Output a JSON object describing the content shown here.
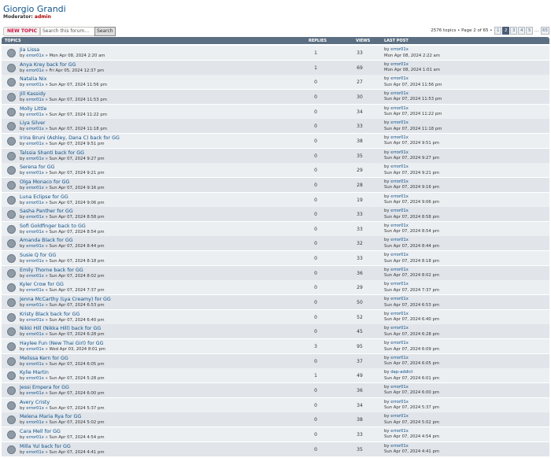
{
  "header": {
    "title": "Giorgio Grandi",
    "moderator_label": "Moderator:",
    "moderator": "admin"
  },
  "toolbar": {
    "new_topic": "NEW TOPIC",
    "search_placeholder": "Search this forum…",
    "search_button": "Search",
    "topic_count": "2576 topics",
    "page_info": "Page 2 of 65",
    "separator": "•",
    "pages": [
      "1",
      "2",
      "3",
      "4",
      "5"
    ],
    "ellipsis": "...",
    "last_page": "65",
    "current_page": "2"
  },
  "table": {
    "headers": [
      "TOPICS",
      "REPLIES",
      "VIEWS",
      "LAST POST"
    ],
    "by_label": "by",
    "arrow": "»",
    "rows": [
      {
        "title": "Jia Lissa",
        "author": "error01x",
        "posted": "Mon Apr 08, 2024 2:20 am",
        "replies": 1,
        "views": 33,
        "last_author": "error01x",
        "last_date": "Mon Apr 08, 2024 2:22 am"
      },
      {
        "title": "Anya Krey back for GG",
        "author": "error01x",
        "posted": "Fri Apr 05, 2024 12:37 pm",
        "replies": 1,
        "views": 69,
        "last_author": "error01x",
        "last_date": "Mon Apr 08, 2024 1:01 am"
      },
      {
        "title": "Natalia Nix",
        "author": "error01x",
        "posted": "Sun Apr 07, 2024 11:56 pm",
        "replies": 0,
        "views": 27,
        "last_author": "error01x",
        "last_date": "Sun Apr 07, 2024 11:56 pm"
      },
      {
        "title": "Jill Kassidy",
        "author": "error01x",
        "posted": "Sun Apr 07, 2024 11:53 pm",
        "replies": 0,
        "views": 30,
        "last_author": "error01x",
        "last_date": "Sun Apr 07, 2024 11:53 pm"
      },
      {
        "title": "Molly Little",
        "author": "error01x",
        "posted": "Sun Apr 07, 2024 11:22 pm",
        "replies": 0,
        "views": 34,
        "last_author": "error01x",
        "last_date": "Sun Apr 07, 2024 11:22 pm"
      },
      {
        "title": "Liya Silver",
        "author": "error01x",
        "posted": "Sun Apr 07, 2024 11:18 pm",
        "replies": 0,
        "views": 33,
        "last_author": "error01x",
        "last_date": "Sun Apr 07, 2024 11:18 pm"
      },
      {
        "title": "Irina Bruni (Ashley, Dana C) back for GG",
        "author": "error01x",
        "posted": "Sun Apr 07, 2024 9:51 pm",
        "replies": 0,
        "views": 38,
        "last_author": "error01x",
        "last_date": "Sun Apr 07, 2024 9:51 pm"
      },
      {
        "title": "Talssia Shanti back for GG",
        "author": "error01x",
        "posted": "Sun Apr 07, 2024 9:27 pm",
        "replies": 0,
        "views": 35,
        "last_author": "error01x",
        "last_date": "Sun Apr 07, 2024 9:27 pm"
      },
      {
        "title": "Serena for GG",
        "author": "error01x",
        "posted": "Sun Apr 07, 2024 9:21 pm",
        "replies": 0,
        "views": 29,
        "last_author": "error01x",
        "last_date": "Sun Apr 07, 2024 9:21 pm"
      },
      {
        "title": "Olga Monaco for GG",
        "author": "error01x",
        "posted": "Sun Apr 07, 2024 9:16 pm",
        "replies": 0,
        "views": 28,
        "last_author": "error01x",
        "last_date": "Sun Apr 07, 2024 9:16 pm"
      },
      {
        "title": "Luna Eclipse for GG",
        "author": "error01x",
        "posted": "Sun Apr 07, 2024 9:06 pm",
        "replies": 0,
        "views": 19,
        "last_author": "error01x",
        "last_date": "Sun Apr 07, 2024 9:06 pm"
      },
      {
        "title": "Sasha Panther for GG",
        "author": "error01x",
        "posted": "Sun Apr 07, 2024 8:58 pm",
        "replies": 0,
        "views": 33,
        "last_author": "error01x",
        "last_date": "Sun Apr 07, 2024 8:58 pm"
      },
      {
        "title": "Sofi Goldfinger back to GG",
        "author": "error01x",
        "posted": "Sun Apr 07, 2024 8:54 pm",
        "replies": 0,
        "views": 33,
        "last_author": "error01x",
        "last_date": "Sun Apr 07, 2024 8:54 pm"
      },
      {
        "title": "Amanda Black for GG",
        "author": "error01x",
        "posted": "Sun Apr 07, 2024 8:44 pm",
        "replies": 0,
        "views": 32,
        "last_author": "error01x",
        "last_date": "Sun Apr 07, 2024 8:44 pm"
      },
      {
        "title": "Susie Q for GG",
        "author": "error01x",
        "posted": "Sun Apr 07, 2024 8:18 pm",
        "replies": 0,
        "views": 33,
        "last_author": "error01x",
        "last_date": "Sun Apr 07, 2024 8:18 pm"
      },
      {
        "title": "Emily Thorne back for GG",
        "author": "error01x",
        "posted": "Sun Apr 07, 2024 8:02 pm",
        "replies": 0,
        "views": 36,
        "last_author": "error01x",
        "last_date": "Sun Apr 07, 2024 8:02 pm"
      },
      {
        "title": "Kyler Crow for GG",
        "author": "error01x",
        "posted": "Sun Apr 07, 2024 7:37 pm",
        "replies": 0,
        "views": 29,
        "last_author": "error01x",
        "last_date": "Sun Apr 07, 2024 7:37 pm"
      },
      {
        "title": "Jenna McCarthy (Lya Creamy) for GG",
        "author": "error01x",
        "posted": "Sun Apr 07, 2024 6:53 pm",
        "replies": 0,
        "views": 50,
        "last_author": "error01x",
        "last_date": "Sun Apr 07, 2024 6:53 pm"
      },
      {
        "title": "Kristy Black back for GG",
        "author": "error01x",
        "posted": "Sun Apr 07, 2024 6:40 pm",
        "replies": 0,
        "views": 52,
        "last_author": "error01x",
        "last_date": "Sun Apr 07, 2024 6:40 pm"
      },
      {
        "title": "Nikki Hill (Nikka Hill) back for GG",
        "author": "error01x",
        "posted": "Sun Apr 07, 2024 6:28 pm",
        "replies": 0,
        "views": 45,
        "last_author": "error01x",
        "last_date": "Sun Apr 07, 2024 6:28 pm"
      },
      {
        "title": "Haylee Fun (New Thai Girl) for GG",
        "author": "error01x",
        "posted": "Wed Apr 03, 2024 8:01 pm",
        "replies": 3,
        "views": 95,
        "last_author": "error01x",
        "last_date": "Sun Apr 07, 2024 6:09 pm"
      },
      {
        "title": "Melissa Kern for GG",
        "author": "error01x",
        "posted": "Sun Apr 07, 2024 6:05 pm",
        "replies": 0,
        "views": 37,
        "last_author": "error01x",
        "last_date": "Sun Apr 07, 2024 6:05 pm"
      },
      {
        "title": "Kylie Martin",
        "author": "error01x",
        "posted": "Sun Apr 07, 2024 5:28 pm",
        "replies": 1,
        "views": 49,
        "last_author": "dap-addict",
        "last_date": "Sun Apr 07, 2024 6:01 pm"
      },
      {
        "title": "Jessi Empera for GG",
        "author": "error01x",
        "posted": "Sun Apr 07, 2024 6:00 pm",
        "replies": 0,
        "views": 36,
        "last_author": "error01x",
        "last_date": "Sun Apr 07, 2024 6:00 pm"
      },
      {
        "title": "Avery Cristy",
        "author": "error01x",
        "posted": "Sun Apr 07, 2024 5:37 pm",
        "replies": 0,
        "views": 34,
        "last_author": "error01x",
        "last_date": "Sun Apr 07, 2024 5:37 pm"
      },
      {
        "title": "Melena Maria Rya for GG",
        "author": "error01x",
        "posted": "Sun Apr 07, 2024 5:02 pm",
        "replies": 0,
        "views": 38,
        "last_author": "error01x",
        "last_date": "Sun Apr 07, 2024 5:02 pm"
      },
      {
        "title": "Cara Mell for GG",
        "author": "error01x",
        "posted": "Sun Apr 07, 2024 4:54 pm",
        "replies": 0,
        "views": 33,
        "last_author": "error01x",
        "last_date": "Sun Apr 07, 2024 4:54 pm"
      },
      {
        "title": "Milla Yul back for GG",
        "author": "error01x",
        "posted": "Sun Apr 07, 2024 4:41 pm",
        "replies": 0,
        "views": 35,
        "last_author": "error01x",
        "last_date": "Sun Apr 07, 2024 4:41 pm"
      }
    ]
  }
}
